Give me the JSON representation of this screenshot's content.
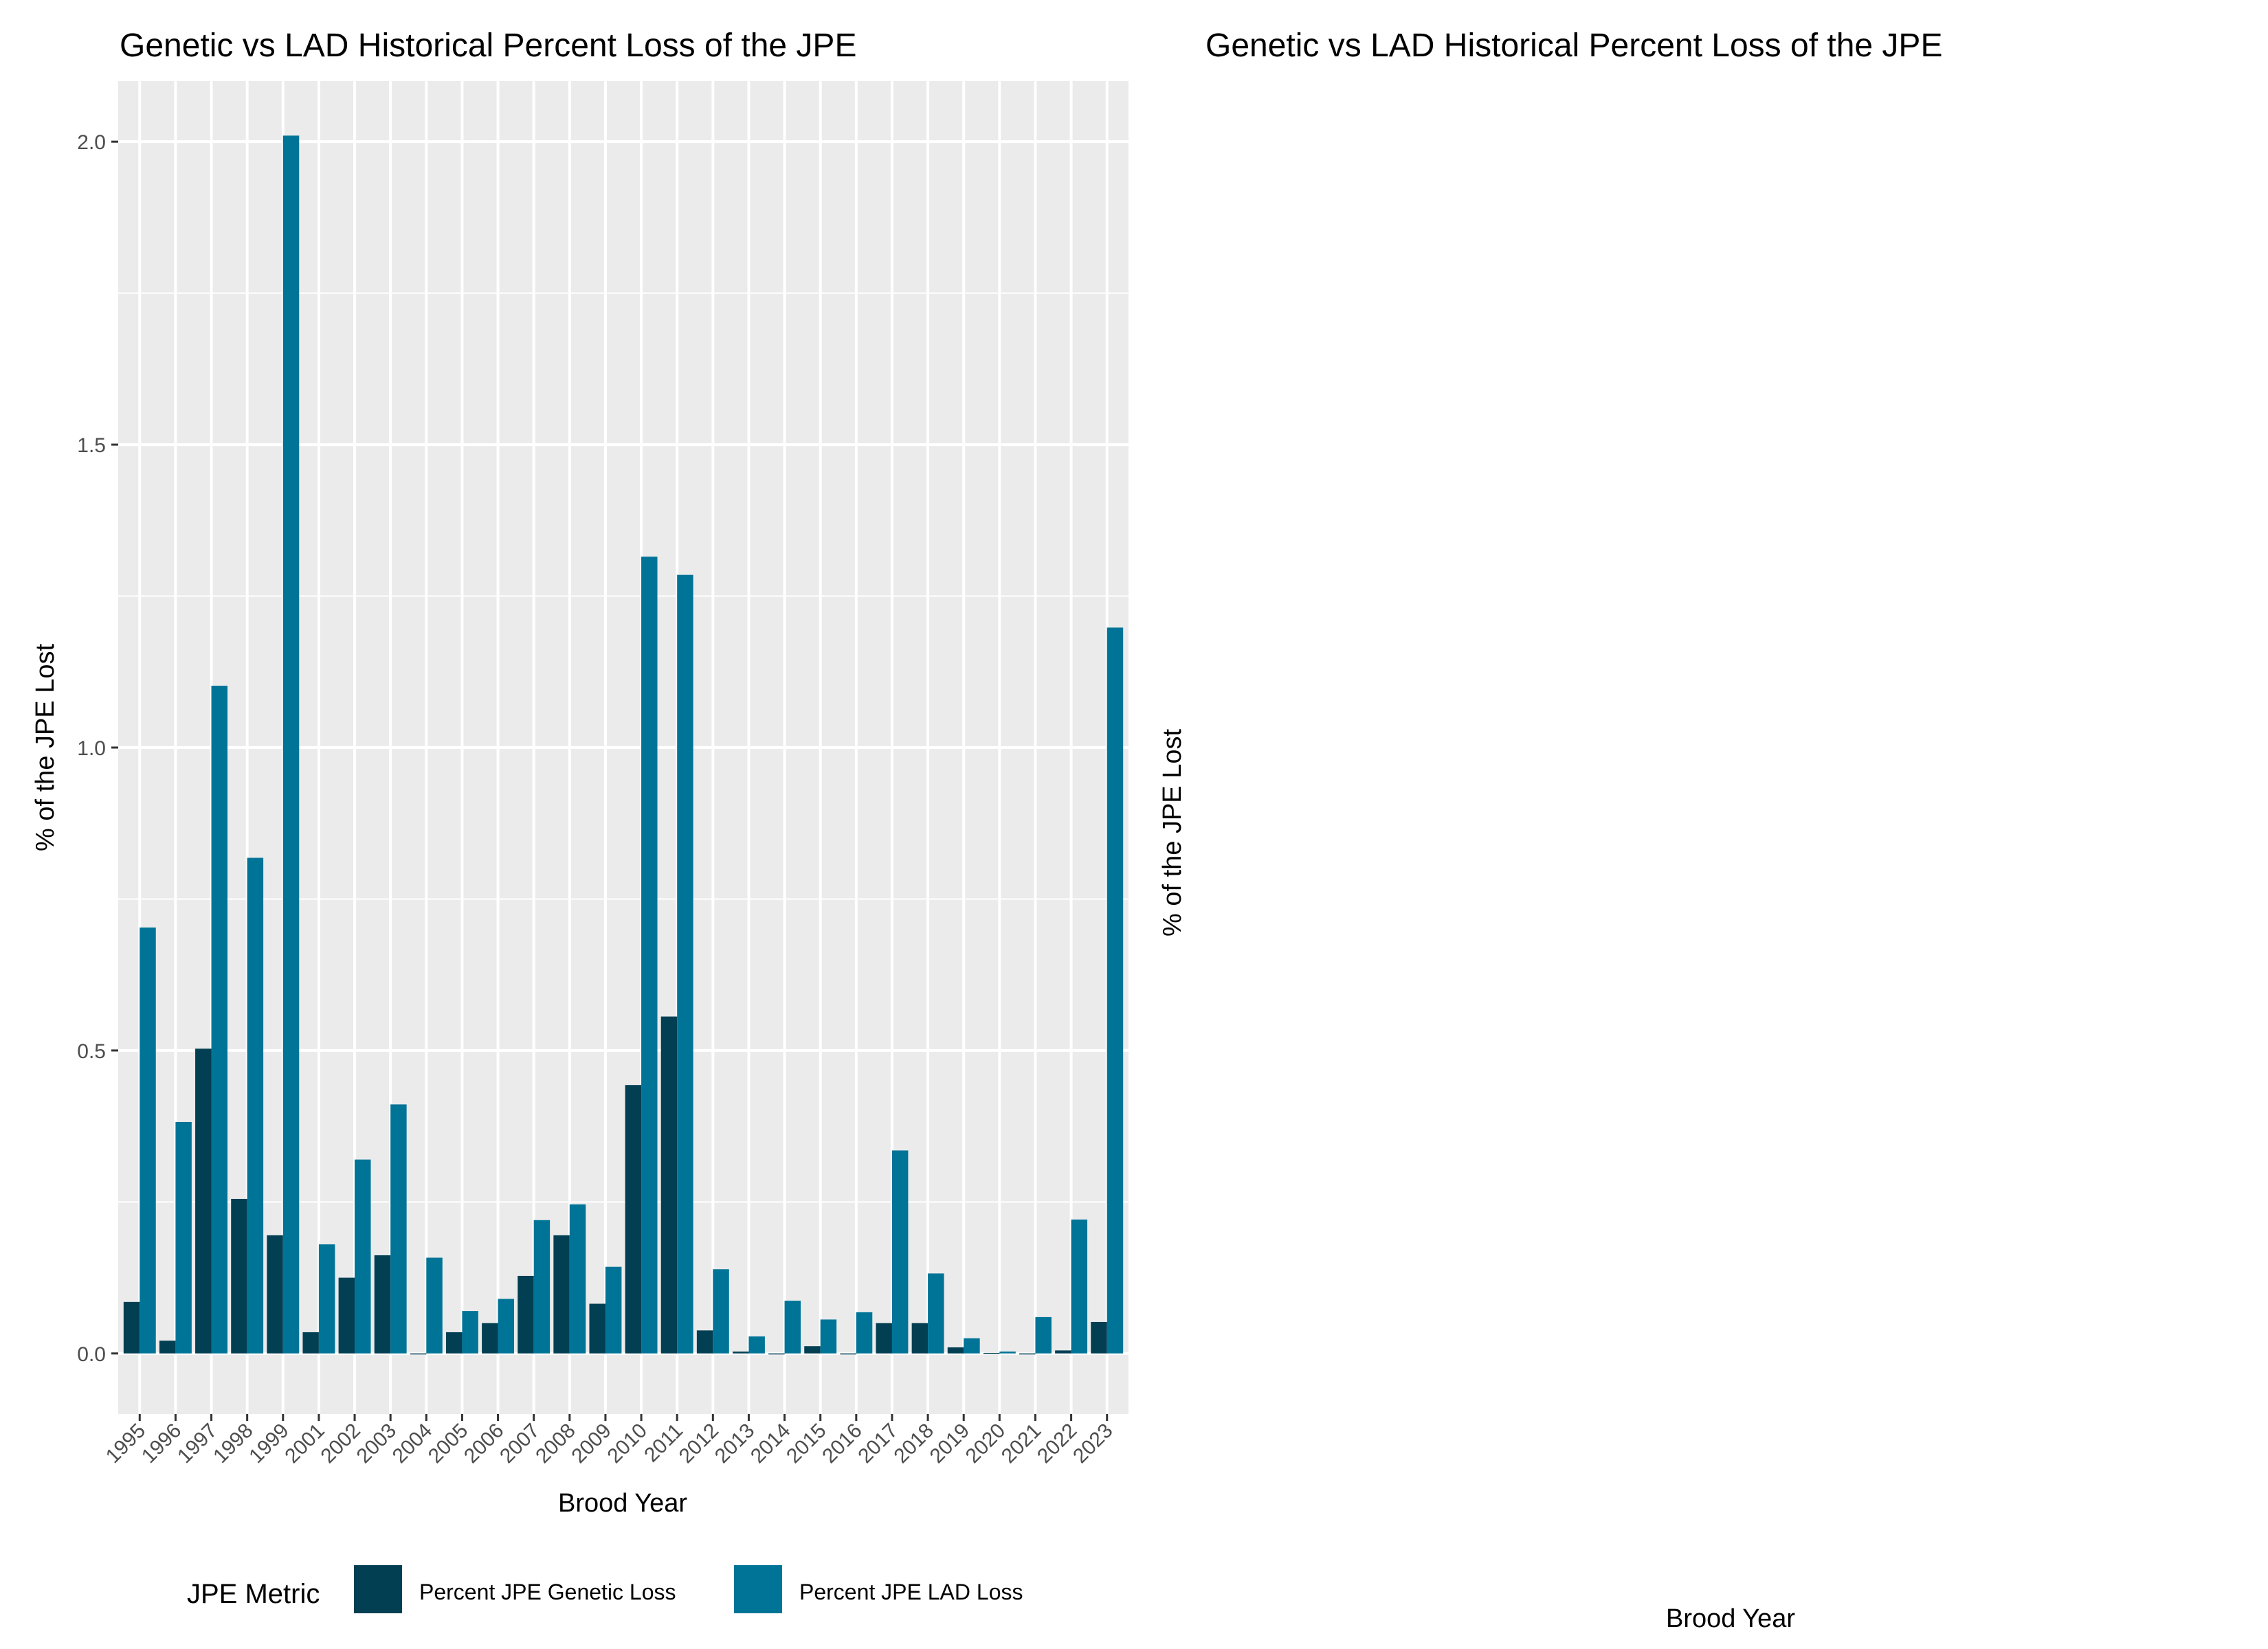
{
  "chart_data": [
    {
      "type": "bar",
      "title": "Genetic vs LAD Historical Percent Loss of the JPE",
      "xlabel": "Brood Year",
      "ylabel": "% of the JPE Lost",
      "ylim": [
        -0.1,
        2.1
      ],
      "yticks": [
        "0.0",
        "0.5",
        "1.0",
        "1.5",
        "2.0"
      ],
      "grid": true,
      "legend_position": "bottom",
      "legend_title": "JPE Metric",
      "categories": [
        "1995",
        "1996",
        "1997",
        "1998",
        "1999",
        "2001",
        "2002",
        "2003",
        "2004",
        "2005",
        "2006",
        "2007",
        "2008",
        "2009",
        "2010",
        "2011",
        "2012",
        "2013",
        "2014",
        "2015",
        "2016",
        "2017",
        "2018",
        "2019",
        "2020",
        "2021",
        "2022",
        "2023"
      ],
      "series": [
        {
          "name": "Percent JPE Genetic Loss",
          "color": "#023f53",
          "values": [
            0.085,
            0.021,
            0.503,
            0.255,
            0.195,
            0.035,
            0.125,
            0.162,
            0.0,
            0.035,
            0.05,
            0.128,
            0.195,
            0.082,
            0.443,
            0.556,
            0.038,
            0.003,
            0.0,
            0.012,
            0.0,
            0.05,
            0.05,
            0.01,
            0.001,
            0.0,
            0.005,
            0.052
          ]
        },
        {
          "name": "Percent JPE LAD Loss",
          "color": "#007497",
          "values": [
            0.703,
            0.382,
            1.102,
            0.818,
            2.01,
            0.18,
            0.32,
            0.411,
            0.158,
            0.07,
            0.09,
            0.22,
            0.246,
            0.143,
            1.315,
            1.285,
            0.139,
            0.028,
            0.087,
            0.056,
            0.068,
            0.335,
            0.132,
            0.025,
            0.003,
            0.06,
            0.221,
            1.198
          ]
        }
      ]
    },
    {
      "type": "bar",
      "title": "Genetic vs LAD Historical Percent Loss of the JPE",
      "xlabel": "Brood Year",
      "ylabel": "% of the JPE Lost",
      "categories": [],
      "series": []
    }
  ]
}
